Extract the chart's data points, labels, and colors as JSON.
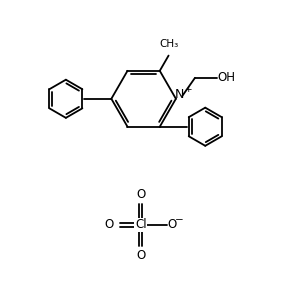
{
  "bg_color": "#ffffff",
  "line_color": "#000000",
  "line_width": 1.3,
  "font_size": 8.5,
  "figsize": [
    2.99,
    3.07
  ],
  "dpi": 100,
  "xlim": [
    0,
    10
  ],
  "ylim": [
    0,
    10.27
  ]
}
